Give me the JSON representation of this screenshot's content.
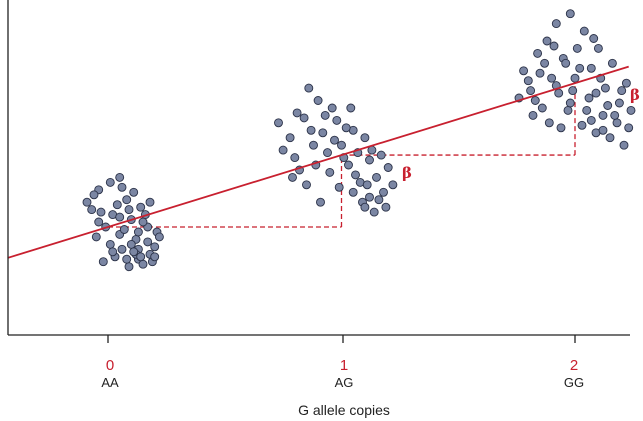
{
  "colors": {
    "accent": "#c8202f",
    "point_fill": "#7b86a3",
    "point_stroke": "#2b3248",
    "axis": "#222222"
  },
  "chart_data": {
    "type": "scatter",
    "title": "",
    "xlabel": "G allele copies",
    "ylabel": "",
    "grid": false,
    "legend": "none",
    "x": [
      0,
      1,
      2
    ],
    "x_tick_labels": [
      "0",
      "1",
      "2"
    ],
    "x_genotype_labels": [
      "AA",
      "AG",
      "GG"
    ],
    "annotations": [
      "β",
      "β"
    ],
    "group_means": [
      0,
      0.29,
      0.58
    ],
    "regression_line": {
      "slope": 0.29,
      "intercept": 0
    },
    "series": [
      {
        "points": [
          [
            -0.04,
            0.15
          ],
          [
            0.01,
            0.18
          ],
          [
            0.05,
            0.2
          ],
          [
            0.1,
            0.03
          ],
          [
            -0.09,
            0.1
          ],
          [
            0.13,
            -0.09
          ],
          [
            0.05,
            -0.03
          ],
          [
            0.13,
            -0.13
          ],
          [
            0.02,
            0.05
          ],
          [
            0.08,
            0.11
          ],
          [
            0.17,
            0.0
          ],
          [
            0.2,
            -0.08
          ],
          [
            -0.05,
            -0.04
          ],
          [
            -0.02,
            -0.14
          ],
          [
            0.12,
            -0.05
          ],
          [
            -0.07,
            0.07
          ],
          [
            0.15,
            -0.15
          ],
          [
            0.21,
            -0.02
          ],
          [
            0.06,
            -0.09
          ],
          [
            0.09,
            -0.16
          ],
          [
            -0.01,
            0.0
          ],
          [
            0.14,
            0.08
          ],
          [
            0.03,
            -0.12
          ],
          [
            0.18,
            -0.11
          ],
          [
            0.11,
            0.14
          ],
          [
            -0.06,
            0.13
          ],
          [
            0.16,
            0.05
          ],
          [
            0.07,
            -0.01
          ],
          [
            0.19,
            -0.14
          ],
          [
            0.04,
            0.09
          ],
          [
            0.12,
            -0.11
          ],
          [
            0.01,
            -0.07
          ],
          [
            0.22,
            -0.04
          ],
          [
            0.08,
            -0.13
          ],
          [
            -0.03,
            0.06
          ],
          [
            0.15,
            0.02
          ],
          [
            0.1,
            -0.07
          ],
          [
            0.06,
            0.16
          ],
          [
            0.18,
            0.1
          ],
          [
            0.13,
            -0.02
          ],
          [
            0.05,
            0.04
          ],
          [
            0.02,
            -0.1
          ],
          [
            0.17,
            -0.06
          ],
          [
            0.09,
            0.07
          ],
          [
            -0.04,
            0.02
          ],
          [
            0.14,
            -0.12
          ],
          [
            0.11,
            -0.1
          ],
          [
            0.2,
            -0.12
          ]
        ]
      },
      {
        "points": [
          [
            -0.22,
            0.36
          ],
          [
            -0.27,
            0.42
          ],
          [
            -0.19,
            0.46
          ],
          [
            -0.14,
            0.56
          ],
          [
            -0.1,
            0.51
          ],
          [
            -0.02,
            0.43
          ],
          [
            0.05,
            0.39
          ],
          [
            0.12,
            0.27
          ],
          [
            -0.18,
            0.23
          ],
          [
            -0.06,
            0.3
          ],
          [
            0.03,
            0.25
          ],
          [
            0.1,
            0.36
          ],
          [
            -0.12,
            0.33
          ],
          [
            -0.2,
            0.28
          ],
          [
            0.08,
            0.18
          ],
          [
            0.15,
            0.2
          ],
          [
            -0.04,
            0.48
          ],
          [
            -0.08,
            0.38
          ],
          [
            0.0,
            0.33
          ],
          [
            0.06,
            0.21
          ],
          [
            0.18,
            0.14
          ],
          [
            -0.15,
            0.17
          ],
          [
            0.04,
            0.48
          ],
          [
            -0.25,
            0.31
          ],
          [
            -0.11,
            0.25
          ],
          [
            0.13,
            0.31
          ],
          [
            0.2,
            0.24
          ],
          [
            -0.01,
            0.16
          ],
          [
            0.09,
            0.1
          ],
          [
            0.16,
            0.11
          ],
          [
            -0.05,
            0.22
          ],
          [
            0.02,
            0.4
          ],
          [
            -0.16,
            0.44
          ],
          [
            0.11,
            0.17
          ],
          [
            -0.09,
            0.1
          ],
          [
            0.22,
            0.17
          ],
          [
            0.07,
            0.3
          ],
          [
            -0.13,
            0.39
          ],
          [
            0.14,
            0.06
          ],
          [
            -0.03,
            0.35
          ],
          [
            0.05,
            0.14
          ],
          [
            0.17,
            0.29
          ],
          [
            -0.07,
            0.45
          ],
          [
            0.1,
            0.08
          ],
          [
            -0.21,
            0.2
          ],
          [
            0.01,
            0.28
          ],
          [
            0.19,
            0.08
          ],
          [
            0.12,
            0.12
          ]
        ]
      },
      {
        "points": [
          [
            -0.22,
            0.63
          ],
          [
            -0.16,
            0.7
          ],
          [
            -0.12,
            0.75
          ],
          [
            -0.08,
            0.82
          ],
          [
            -0.02,
            0.86
          ],
          [
            0.04,
            0.79
          ],
          [
            0.1,
            0.72
          ],
          [
            0.16,
            0.66
          ],
          [
            0.22,
            0.58
          ],
          [
            -0.19,
            0.55
          ],
          [
            -0.1,
            0.6
          ],
          [
            -0.05,
            0.68
          ],
          [
            0.01,
            0.72
          ],
          [
            0.07,
            0.64
          ],
          [
            0.13,
            0.56
          ],
          [
            0.19,
            0.5
          ],
          [
            0.24,
            0.47
          ],
          [
            -0.24,
            0.52
          ],
          [
            -0.14,
            0.48
          ],
          [
            -0.07,
            0.54
          ],
          [
            0.0,
            0.6
          ],
          [
            0.06,
            0.52
          ],
          [
            0.12,
            0.45
          ],
          [
            0.18,
            0.42
          ],
          [
            -0.18,
            0.45
          ],
          [
            -0.11,
            0.42
          ],
          [
            -0.03,
            0.47
          ],
          [
            0.03,
            0.41
          ],
          [
            0.09,
            0.38
          ],
          [
            0.15,
            0.36
          ],
          [
            0.21,
            0.33
          ],
          [
            -0.04,
            0.66
          ],
          [
            0.02,
            0.64
          ],
          [
            -0.09,
            0.73
          ],
          [
            0.08,
            0.76
          ],
          [
            -0.15,
            0.62
          ],
          [
            0.11,
            0.6
          ],
          [
            -0.01,
            0.55
          ],
          [
            0.14,
            0.49
          ],
          [
            0.2,
            0.55
          ],
          [
            -0.06,
            0.4
          ],
          [
            0.05,
            0.47
          ],
          [
            0.17,
            0.45
          ],
          [
            -0.13,
            0.66
          ],
          [
            0.09,
            0.54
          ],
          [
            -0.02,
            0.5
          ],
          [
            0.23,
            0.4
          ],
          [
            -0.2,
            0.59
          ],
          [
            0.07,
            0.43
          ],
          [
            -0.08,
            0.57
          ],
          [
            0.12,
            0.39
          ],
          [
            -0.17,
            0.51
          ]
        ]
      }
    ]
  }
}
